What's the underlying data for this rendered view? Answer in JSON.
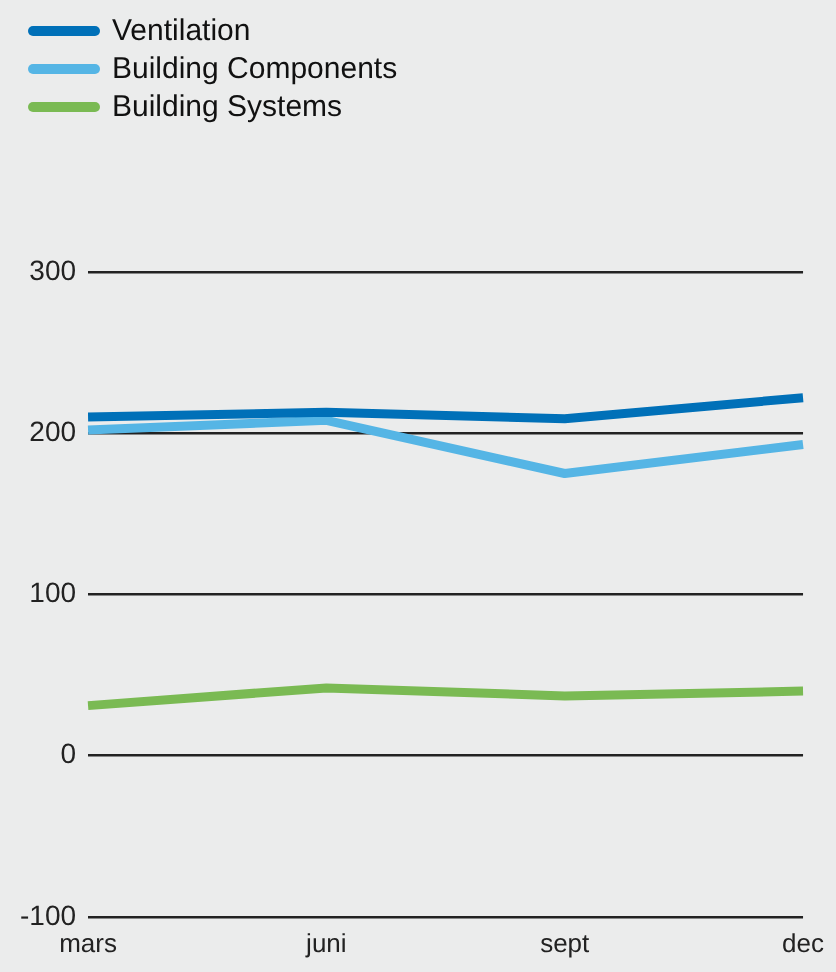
{
  "chart_data": {
    "type": "line",
    "categories": [
      "mars",
      "juni",
      "sept",
      "dec"
    ],
    "series": [
      {
        "name": "Ventilation",
        "color": "#0070b8",
        "values": [
          210,
          213,
          209,
          222
        ]
      },
      {
        "name": "Building Components",
        "color": "#55b5e5",
        "values": [
          202,
          208,
          175,
          193
        ]
      },
      {
        "name": "Building Systems",
        "color": "#7aba53",
        "values": [
          31,
          42,
          37,
          40
        ]
      }
    ],
    "ylim": [
      -100,
      300
    ],
    "yticks": [
      -100,
      0,
      100,
      200,
      300
    ],
    "grid": "y",
    "legend": "top left",
    "marker": "none",
    "line_style": "solid"
  }
}
